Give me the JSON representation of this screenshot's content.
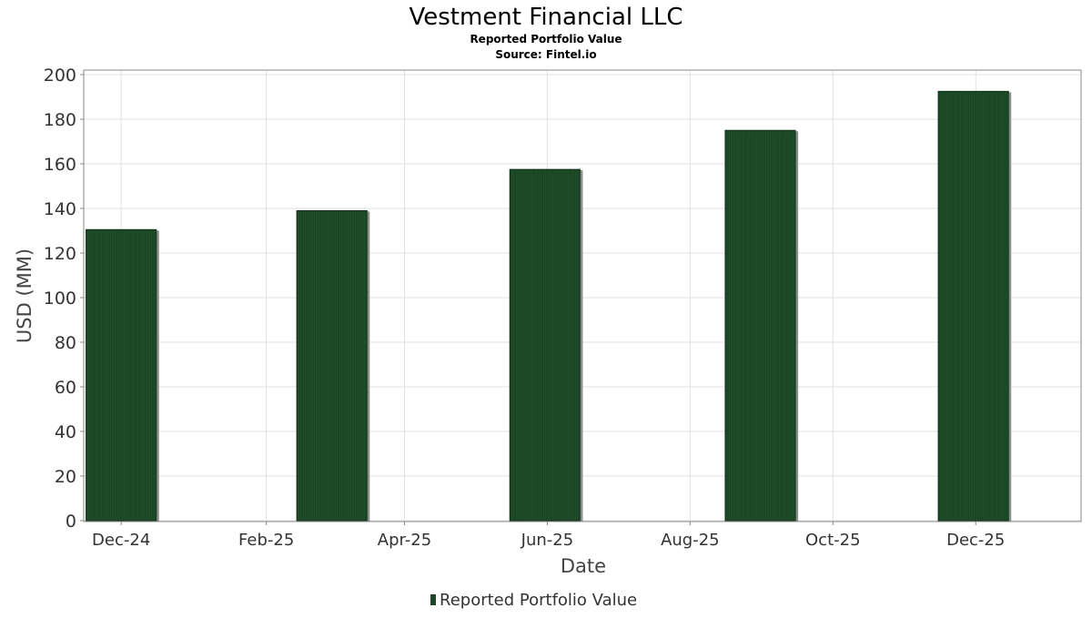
{
  "chart_data": {
    "type": "bar",
    "title": "Vestment Financial LLC",
    "subtitle_1": "Reported Portfolio Value",
    "subtitle_2": "Source: Fintel.io",
    "xlabel": "Date",
    "ylabel": "USD (MM)",
    "ylim": [
      0,
      200
    ],
    "y_ticks": [
      0,
      20,
      40,
      60,
      80,
      100,
      120,
      140,
      160,
      180,
      200
    ],
    "x_range": [
      "2024-11-15",
      "2026-01-15"
    ],
    "x_ticks": [
      {
        "date": "2024-12-01",
        "label": "Dec-24"
      },
      {
        "date": "2025-02-01",
        "label": "Feb-25"
      },
      {
        "date": "2025-04-01",
        "label": "Apr-25"
      },
      {
        "date": "2025-06-01",
        "label": "Jun-25"
      },
      {
        "date": "2025-08-01",
        "label": "Aug-25"
      },
      {
        "date": "2025-10-01",
        "label": "Oct-25"
      },
      {
        "date": "2025-12-01",
        "label": "Dec-25"
      }
    ],
    "grid": true,
    "legend_position": "bottom",
    "series": [
      {
        "name": "Reported Portfolio Value",
        "color": "#1b4524",
        "points": [
          {
            "start": "2024-11-16",
            "end": "2024-12-16",
            "value": 130.5
          },
          {
            "start": "2025-02-14",
            "end": "2025-03-16",
            "value": 139
          },
          {
            "start": "2025-05-16",
            "end": "2025-06-15",
            "value": 157.5
          },
          {
            "start": "2025-08-16",
            "end": "2025-09-15",
            "value": 175
          },
          {
            "start": "2025-11-15",
            "end": "2025-12-15",
            "value": 192.5
          }
        ]
      }
    ]
  }
}
